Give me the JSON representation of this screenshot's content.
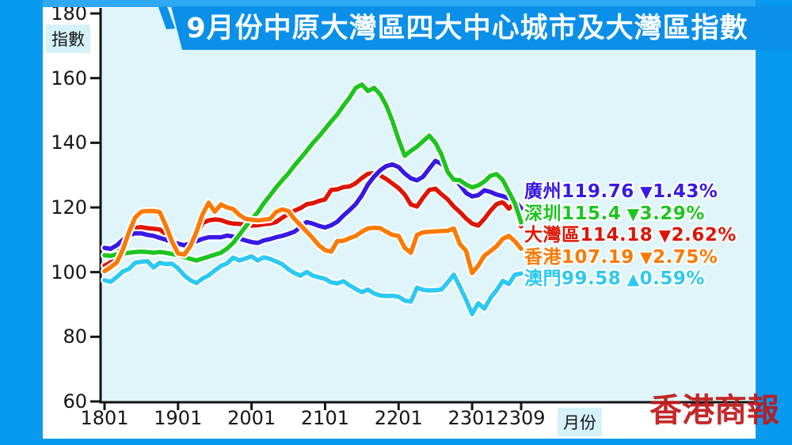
{
  "banner": {
    "title": "9月份中原大灣區四大中心城市及大灣區指數"
  },
  "watermark": "香港商報",
  "colors": {
    "frame": "#0899F1",
    "frame_top": "#2FA9F1",
    "banner": "#0B90E9",
    "plot_bg": "#DFF5F9",
    "axis": "#141414",
    "label_highlight": "#D4F2F7",
    "watermark": "#C0181A"
  },
  "axes": {
    "y_unit_label": "指數",
    "x_unit_label": "月份",
    "y_ticks": [
      180,
      160,
      140,
      120,
      100,
      80,
      60
    ],
    "x_ticks": [
      {
        "label": "1801",
        "month_index": 0
      },
      {
        "label": "1901",
        "month_index": 12
      },
      {
        "label": "2001",
        "month_index": 24
      },
      {
        "label": "2101",
        "month_index": 36
      },
      {
        "label": "2201",
        "month_index": 48
      },
      {
        "label": "2301",
        "month_index": 60
      },
      {
        "label": "2309",
        "month_index": 68
      }
    ]
  },
  "legend": {
    "items": [
      {
        "id": "guangzhou",
        "label": "廣州",
        "value": "119.76",
        "arrow": "▼",
        "change": "1.43%",
        "color": "#3719E6"
      },
      {
        "id": "shenzhen",
        "label": "深圳",
        "value": "115.4",
        "arrow": "▼",
        "change": "3.29%",
        "color": "#1CC520"
      },
      {
        "id": "gba",
        "label": "大灣區",
        "value": "114.18",
        "arrow": "▼",
        "change": "2.62%",
        "color": "#DE1505"
      },
      {
        "id": "hongkong",
        "label": "香港",
        "value": "107.19",
        "arrow": "▼",
        "change": "2.75%",
        "color": "#FB7A04"
      },
      {
        "id": "macau",
        "label": "澳門",
        "value": "99.58",
        "arrow": "▲",
        "change": "0.59%",
        "color": "#2CC9F2"
      }
    ]
  },
  "chart_data": {
    "type": "line",
    "title": "9月份中原大灣區四大中心城市及大灣區指數",
    "xlabel": "月份",
    "ylabel": "指數",
    "ylim": [
      60,
      180
    ],
    "grid": false,
    "legend_position": "right-middle",
    "x_categories": [
      "1801",
      "1802",
      "1803",
      "1804",
      "1805",
      "1806",
      "1807",
      "1808",
      "1809",
      "1810",
      "1811",
      "1812",
      "1901",
      "1902",
      "1903",
      "1904",
      "1905",
      "1906",
      "1907",
      "1908",
      "1909",
      "1910",
      "1911",
      "1912",
      "2001",
      "2002",
      "2003",
      "2004",
      "2005",
      "2006",
      "2007",
      "2008",
      "2009",
      "2010",
      "2011",
      "2012",
      "2101",
      "2102",
      "2103",
      "2104",
      "2105",
      "2106",
      "2107",
      "2108",
      "2109",
      "2110",
      "2111",
      "2112",
      "2201",
      "2202",
      "2203",
      "2204",
      "2205",
      "2206",
      "2207",
      "2208",
      "2209",
      "2210",
      "2211",
      "2212",
      "2301",
      "2302",
      "2303",
      "2304",
      "2305",
      "2306",
      "2307",
      "2308",
      "2309"
    ],
    "series": [
      {
        "id": "guangzhou",
        "name": "廣州",
        "color": "#3719E6",
        "latest": 119.76,
        "change_pct": -1.43,
        "values": [
          107.5,
          107.2,
          108.3,
          110.0,
          111.5,
          112.0,
          112.0,
          111.5,
          111.2,
          110.6,
          110.0,
          109.3,
          108.8,
          108.3,
          108.9,
          109.6,
          110.3,
          110.8,
          110.8,
          110.8,
          111.3,
          111.0,
          110.4,
          109.8,
          109.3,
          109.0,
          109.8,
          110.2,
          110.8,
          111.2,
          111.8,
          112.5,
          114.0,
          115.5,
          115.0,
          114.3,
          113.8,
          114.5,
          115.6,
          117.5,
          119.2,
          121.0,
          123.7,
          127.1,
          129.5,
          131.5,
          132.8,
          133.3,
          132.5,
          130.5,
          129.0,
          128.4,
          129.5,
          132.0,
          134.4,
          133.5,
          131.5,
          129.5,
          127.0,
          124.5,
          123.4,
          123.8,
          125.3,
          124.8,
          124.0,
          123.5,
          122.8,
          122.0,
          119.76
        ]
      },
      {
        "id": "shenzhen",
        "name": "深圳",
        "color": "#1CC520",
        "latest": 115.4,
        "change_pct": -3.29,
        "values": [
          105.2,
          105.0,
          105.5,
          105.8,
          106.0,
          106.2,
          106.3,
          106.2,
          106.0,
          106.2,
          106.0,
          105.6,
          105.2,
          104.6,
          104.1,
          103.6,
          104.2,
          104.8,
          105.4,
          106.0,
          107.3,
          109.0,
          111.5,
          114.0,
          116.4,
          118.5,
          121.3,
          123.7,
          126.2,
          128.4,
          130.5,
          133.0,
          135.2,
          137.5,
          139.9,
          142.0,
          144.3,
          146.6,
          148.8,
          151.5,
          154.0,
          157.0,
          158.0,
          156.0,
          157.0,
          155.0,
          151.5,
          146.7,
          141.0,
          136.0,
          137.5,
          138.8,
          140.5,
          142.2,
          140.0,
          136.4,
          131.0,
          128.6,
          128.4,
          127.1,
          126.2,
          126.8,
          128.0,
          129.8,
          130.3,
          128.5,
          124.9,
          121.2,
          115.4
        ]
      },
      {
        "id": "gba",
        "name": "大灣區",
        "color": "#DE1505",
        "latest": 114.18,
        "change_pct": -2.62,
        "values": [
          102.0,
          103.0,
          105.8,
          108.5,
          111.3,
          113.7,
          113.9,
          113.6,
          113.4,
          113.2,
          111.8,
          110.0,
          108.5,
          107.8,
          108.2,
          111.5,
          115.2,
          116.0,
          116.3,
          116.1,
          115.4,
          115.0,
          114.9,
          114.7,
          114.4,
          114.5,
          114.8,
          115.0,
          115.5,
          116.8,
          118.0,
          119.0,
          119.8,
          121.0,
          121.3,
          122.0,
          122.5,
          125.4,
          125.6,
          126.3,
          126.5,
          127.5,
          129.1,
          130.4,
          130.6,
          129.9,
          128.8,
          127.4,
          126.0,
          124.0,
          120.9,
          120.3,
          123.0,
          125.4,
          125.8,
          124.1,
          122.5,
          120.3,
          118.6,
          116.6,
          115.0,
          114.4,
          116.5,
          119.0,
          121.0,
          121.7,
          119.6,
          121.5,
          114.18
        ]
      },
      {
        "id": "hongkong",
        "name": "香港",
        "color": "#FB7A04",
        "latest": 107.19,
        "change_pct": -2.75,
        "values": [
          100.3,
          101.5,
          103.0,
          107.0,
          112.4,
          116.9,
          118.7,
          118.9,
          118.9,
          118.6,
          114.4,
          109.5,
          105.8,
          105.4,
          108.0,
          112.4,
          117.9,
          121.5,
          118.7,
          120.9,
          120.0,
          119.5,
          117.7,
          116.5,
          116.2,
          116.0,
          116.2,
          116.4,
          118.6,
          119.4,
          118.9,
          116.4,
          114.5,
          112.5,
          110.5,
          108.3,
          106.8,
          106.3,
          109.6,
          109.7,
          110.5,
          111.2,
          112.5,
          113.5,
          113.7,
          113.6,
          112.5,
          111.5,
          111.2,
          107.5,
          106.0,
          111.5,
          112.3,
          112.5,
          112.6,
          112.7,
          112.8,
          113.5,
          108.7,
          106.6,
          99.7,
          102.0,
          105.1,
          106.5,
          108.0,
          110.3,
          111.2,
          109.5,
          107.19
        ]
      },
      {
        "id": "macau",
        "name": "澳門",
        "color": "#2CC9F2",
        "latest": 99.58,
        "change_pct": 0.59,
        "values": [
          97.5,
          97.0,
          98.5,
          100.2,
          101.0,
          102.9,
          103.2,
          103.4,
          101.4,
          102.9,
          102.5,
          102.6,
          101.2,
          99.0,
          97.5,
          96.6,
          98.0,
          99.0,
          100.5,
          101.9,
          102.7,
          104.5,
          103.6,
          104.2,
          104.9,
          103.6,
          104.6,
          104.1,
          103.3,
          102.5,
          100.9,
          99.7,
          98.9,
          100.1,
          98.9,
          98.4,
          97.9,
          96.8,
          96.5,
          97.2,
          95.9,
          94.8,
          93.8,
          94.6,
          93.4,
          92.8,
          92.6,
          92.7,
          92.4,
          91.2,
          90.9,
          95.2,
          94.5,
          94.3,
          94.4,
          94.6,
          96.8,
          99.2,
          95.5,
          91.5,
          87.0,
          90.4,
          88.7,
          92.0,
          94.4,
          97.3,
          96.3,
          99.2,
          99.58
        ]
      }
    ]
  }
}
